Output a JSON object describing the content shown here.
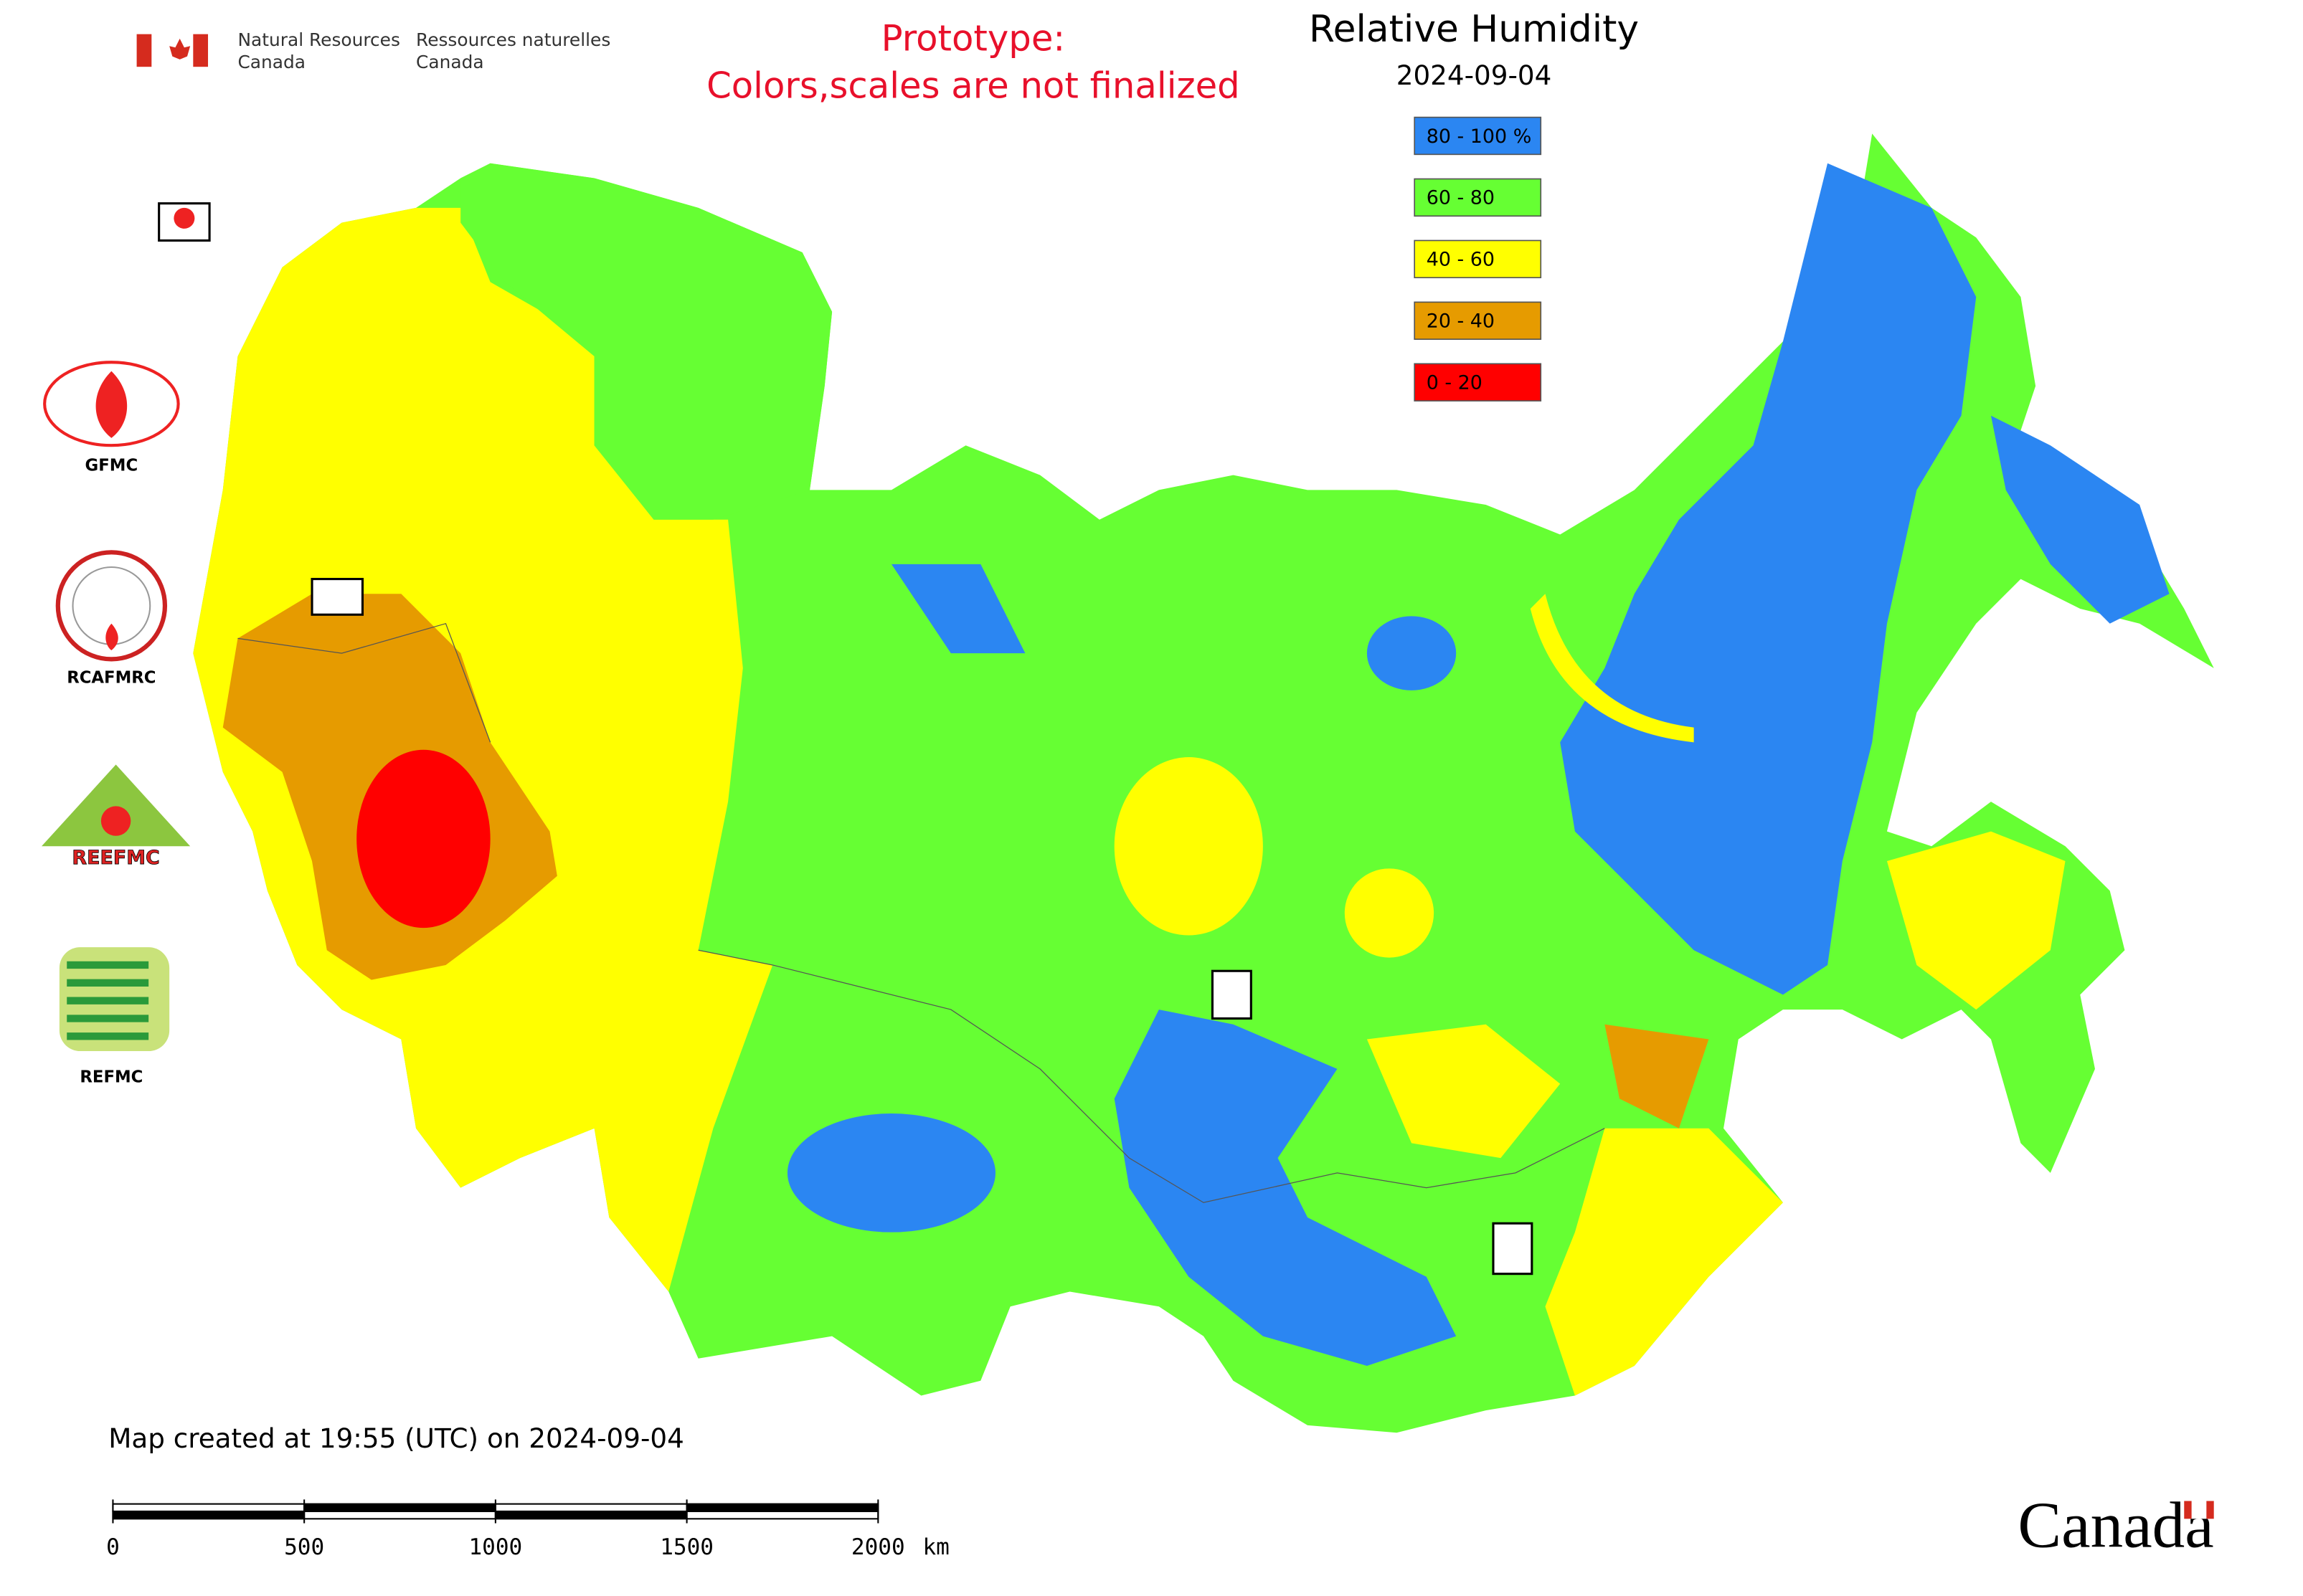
{
  "header": {
    "agency_en": [
      "Natural Resources",
      "Canada"
    ],
    "agency_fr": [
      "Ressources naturelles",
      "Canada"
    ]
  },
  "notice": {
    "line1": "Prototype:",
    "line2": "Colors,scales are not finalized"
  },
  "legend": {
    "title": "Relative Humidity",
    "date": "2024-09-04",
    "items": [
      {
        "label": "80 - 100 %",
        "color": "#2b86f2"
      },
      {
        "label": "60 - 80",
        "color": "#66ff33"
      },
      {
        "label": "40 - 60",
        "color": "#ffff00"
      },
      {
        "label": "20 - 40",
        "color": "#e69b00"
      },
      {
        "label": "0 - 20",
        "color": "#ff0000"
      }
    ]
  },
  "logos": {
    "gfmc": "GFMC",
    "rcafmrc": "RCAFMRC",
    "reefmc": "REEFMC",
    "refmc": "REFMC"
  },
  "footer": {
    "created": "Map created at 19:55 (UTC) on 2024-09-04",
    "wordmark": "Canada"
  },
  "scale_bar": {
    "ticks": [
      0,
      500,
      1000,
      1500,
      2000
    ],
    "unit": "km"
  }
}
